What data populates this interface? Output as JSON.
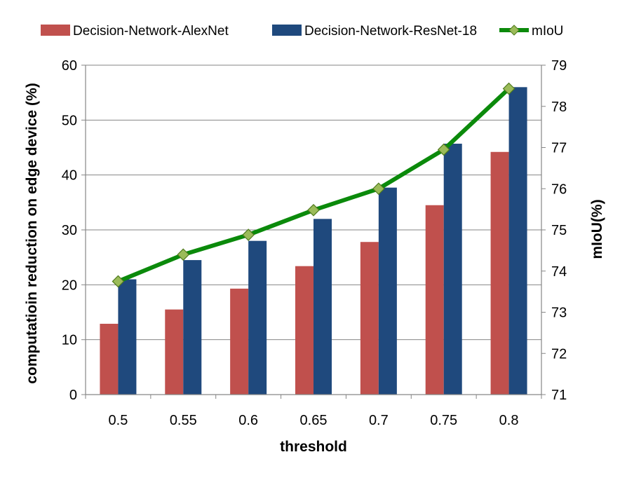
{
  "chart_data": {
    "type": "bar",
    "categories": [
      "0.5",
      "0.55",
      "0.6",
      "0.65",
      "0.7",
      "0.75",
      "0.8"
    ],
    "series": [
      {
        "name": "Decision-Network-AlexNet",
        "kind": "bar",
        "axis": "left",
        "color": "#c0504d",
        "values": [
          12.9,
          15.5,
          19.3,
          23.4,
          27.8,
          34.5,
          44.2
        ]
      },
      {
        "name": "Decision-Network-ResNet-18",
        "kind": "bar",
        "axis": "left",
        "color": "#1f497d",
        "values": [
          21.0,
          24.5,
          28.0,
          32.0,
          37.7,
          45.7,
          56.0
        ]
      },
      {
        "name": "mIoU",
        "kind": "line",
        "axis": "right",
        "color": "#0b8a0b",
        "marker": "diamond",
        "marker_color": "#9bbb59",
        "values": [
          73.75,
          74.4,
          74.88,
          75.48,
          76.0,
          76.95,
          78.43
        ]
      }
    ],
    "xlabel": "threshold",
    "ylabel": "computatioin reduction on edge device (%)",
    "y2label": "mIoU(%)",
    "ylim": [
      0,
      60
    ],
    "y2lim": [
      71,
      79
    ],
    "yticks": [
      "0",
      "10",
      "20",
      "30",
      "40",
      "50",
      "60"
    ],
    "y2ticks": [
      "71",
      "72",
      "73",
      "74",
      "75",
      "76",
      "77",
      "78",
      "79"
    ],
    "grid": "horizontal",
    "legend": "top"
  }
}
